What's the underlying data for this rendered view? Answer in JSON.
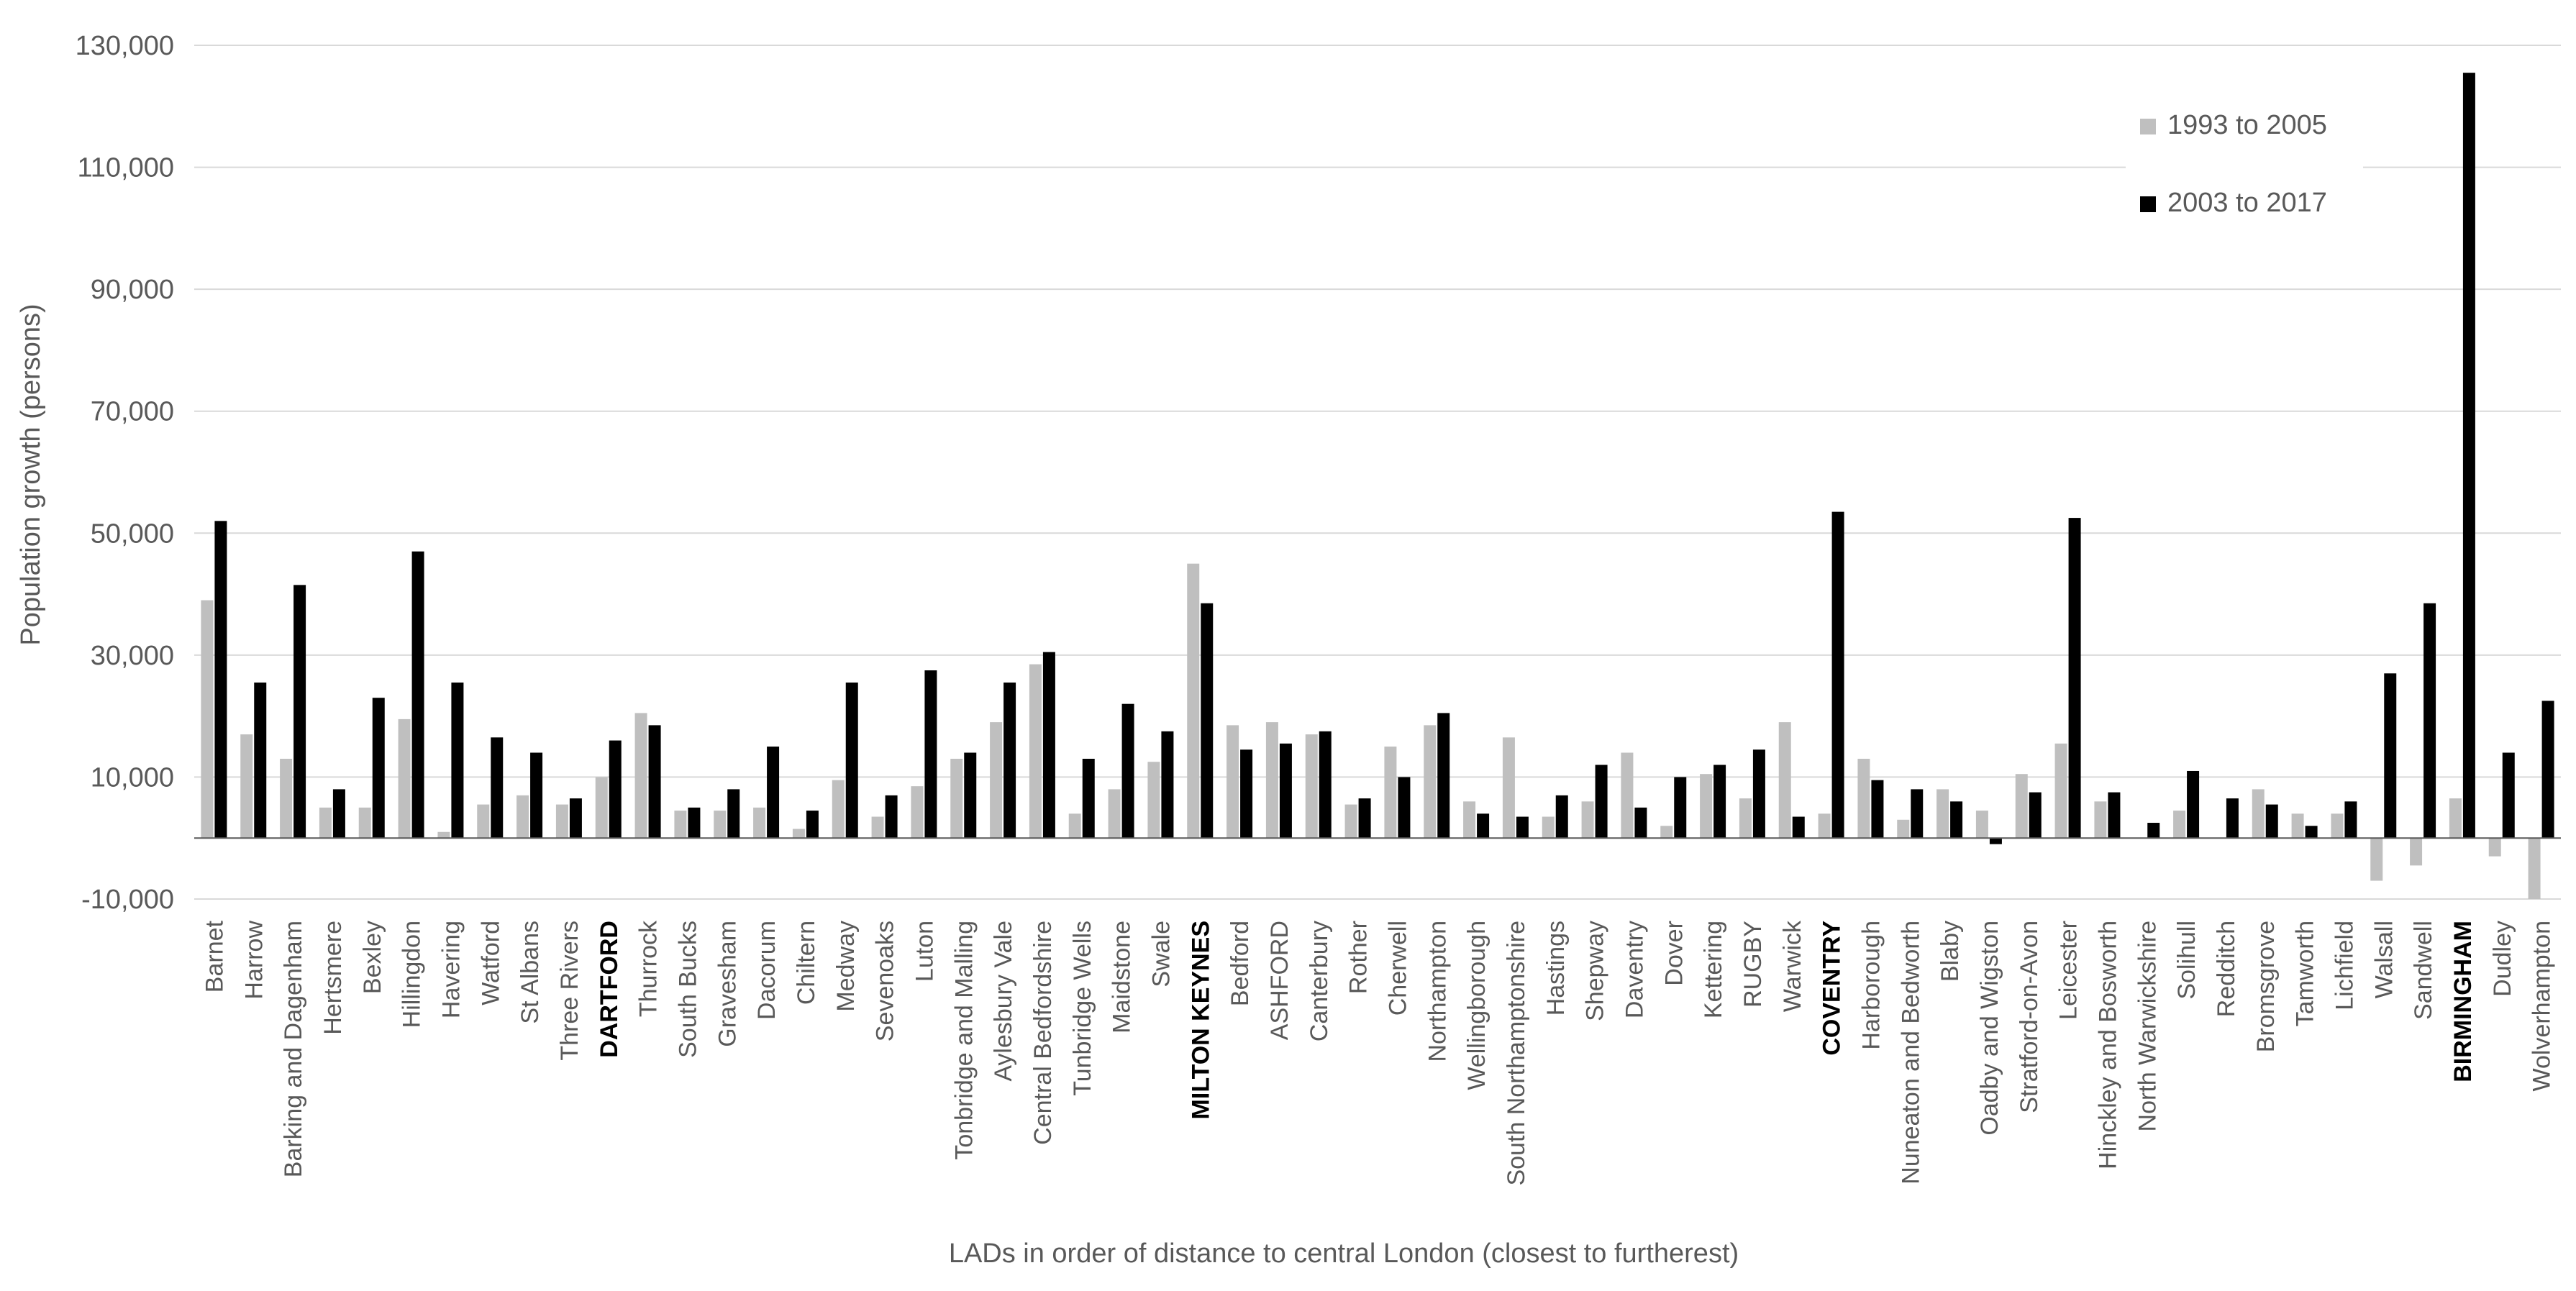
{
  "chart_data": {
    "type": "bar",
    "title": "",
    "xlabel": "LADs in order of distance to central London (closest to furtherest)",
    "ylabel": "Population growth (persons)",
    "ylim": [
      -10000,
      130000
    ],
    "yticks": [
      -10000,
      10000,
      30000,
      50000,
      70000,
      90000,
      110000,
      130000
    ],
    "ytick_labels": [
      "-10,000",
      "10,000",
      "30,000",
      "50,000",
      "70,000",
      "90,000",
      "110,000",
      "130,000"
    ],
    "grid": true,
    "legend_position": "top-right",
    "bold_categories": [
      "DARTFORD",
      "MILTON KEYNES",
      "COVENTRY",
      "BIRMINGHAM"
    ],
    "categories": [
      "Barnet",
      "Harrow",
      "Barking and Dagenham",
      "Hertsmere",
      "Bexley",
      "Hillingdon",
      "Havering",
      "Watford",
      "St Albans",
      "Three Rivers",
      "DARTFORD",
      "Thurrock",
      "South Bucks",
      "Gravesham",
      "Dacorum",
      "Chiltern",
      "Medway",
      "Sevenoaks",
      "Luton",
      "Tonbridge and Malling",
      "Aylesbury Vale",
      "Central Bedfordshire",
      "Tunbridge Wells",
      "Maidstone",
      "Swale",
      "MILTON KEYNES",
      "Bedford",
      "ASHFORD",
      "Canterbury",
      "Rother",
      "Cherwell",
      "Northampton",
      "Wellingborough",
      "South Northamptonshire",
      "Hastings",
      "Shepway",
      "Daventry",
      "Dover",
      "Kettering",
      "RUGBY",
      "Warwick",
      "COVENTRY",
      "Harborough",
      "Nuneaton and Bedworth",
      "Blaby",
      "Oadby and Wigston",
      "Stratford-on-Avon",
      "Leicester",
      "Hinckley and Bosworth",
      "North Warwickshire",
      "Solihull",
      "Redditch",
      "Bromsgrove",
      "Tamworth",
      "Lichfield",
      "Walsall",
      "Sandwell",
      "BIRMINGHAM",
      "Dudley",
      "Wolverhampton"
    ],
    "series": [
      {
        "name": "1993 to 2005",
        "color": "#bfbfbf",
        "values": [
          39000,
          17000,
          13000,
          5000,
          5000,
          19500,
          1000,
          5500,
          7000,
          5500,
          10000,
          20500,
          4500,
          4500,
          5000,
          1500,
          9500,
          3500,
          8500,
          13000,
          19000,
          28500,
          4000,
          8000,
          12500,
          45000,
          18500,
          19000,
          17000,
          5500,
          15000,
          18500,
          6000,
          16500,
          3500,
          6000,
          14000,
          2000,
          10500,
          6500,
          19000,
          4000,
          13000,
          3000,
          8000,
          4500,
          10500,
          15500,
          6000,
          0,
          4500,
          0,
          8000,
          4000,
          4000,
          -7000,
          -4500,
          6500,
          -3000,
          -10000
        ]
      },
      {
        "name": "2003 to 2017",
        "color": "#000000",
        "values": [
          52000,
          25500,
          41500,
          8000,
          23000,
          47000,
          25500,
          16500,
          14000,
          6500,
          16000,
          18500,
          5000,
          8000,
          15000,
          4500,
          25500,
          7000,
          27500,
          14000,
          25500,
          30500,
          13000,
          22000,
          17500,
          38500,
          14500,
          15500,
          17500,
          6500,
          10000,
          20500,
          4000,
          3500,
          7000,
          12000,
          5000,
          10000,
          12000,
          14500,
          3500,
          53500,
          9500,
          8000,
          6000,
          -1000,
          7500,
          52500,
          7500,
          2500,
          11000,
          6500,
          5500,
          2000,
          6000,
          27000,
          38500,
          125500,
          14000,
          22500
        ]
      }
    ]
  }
}
